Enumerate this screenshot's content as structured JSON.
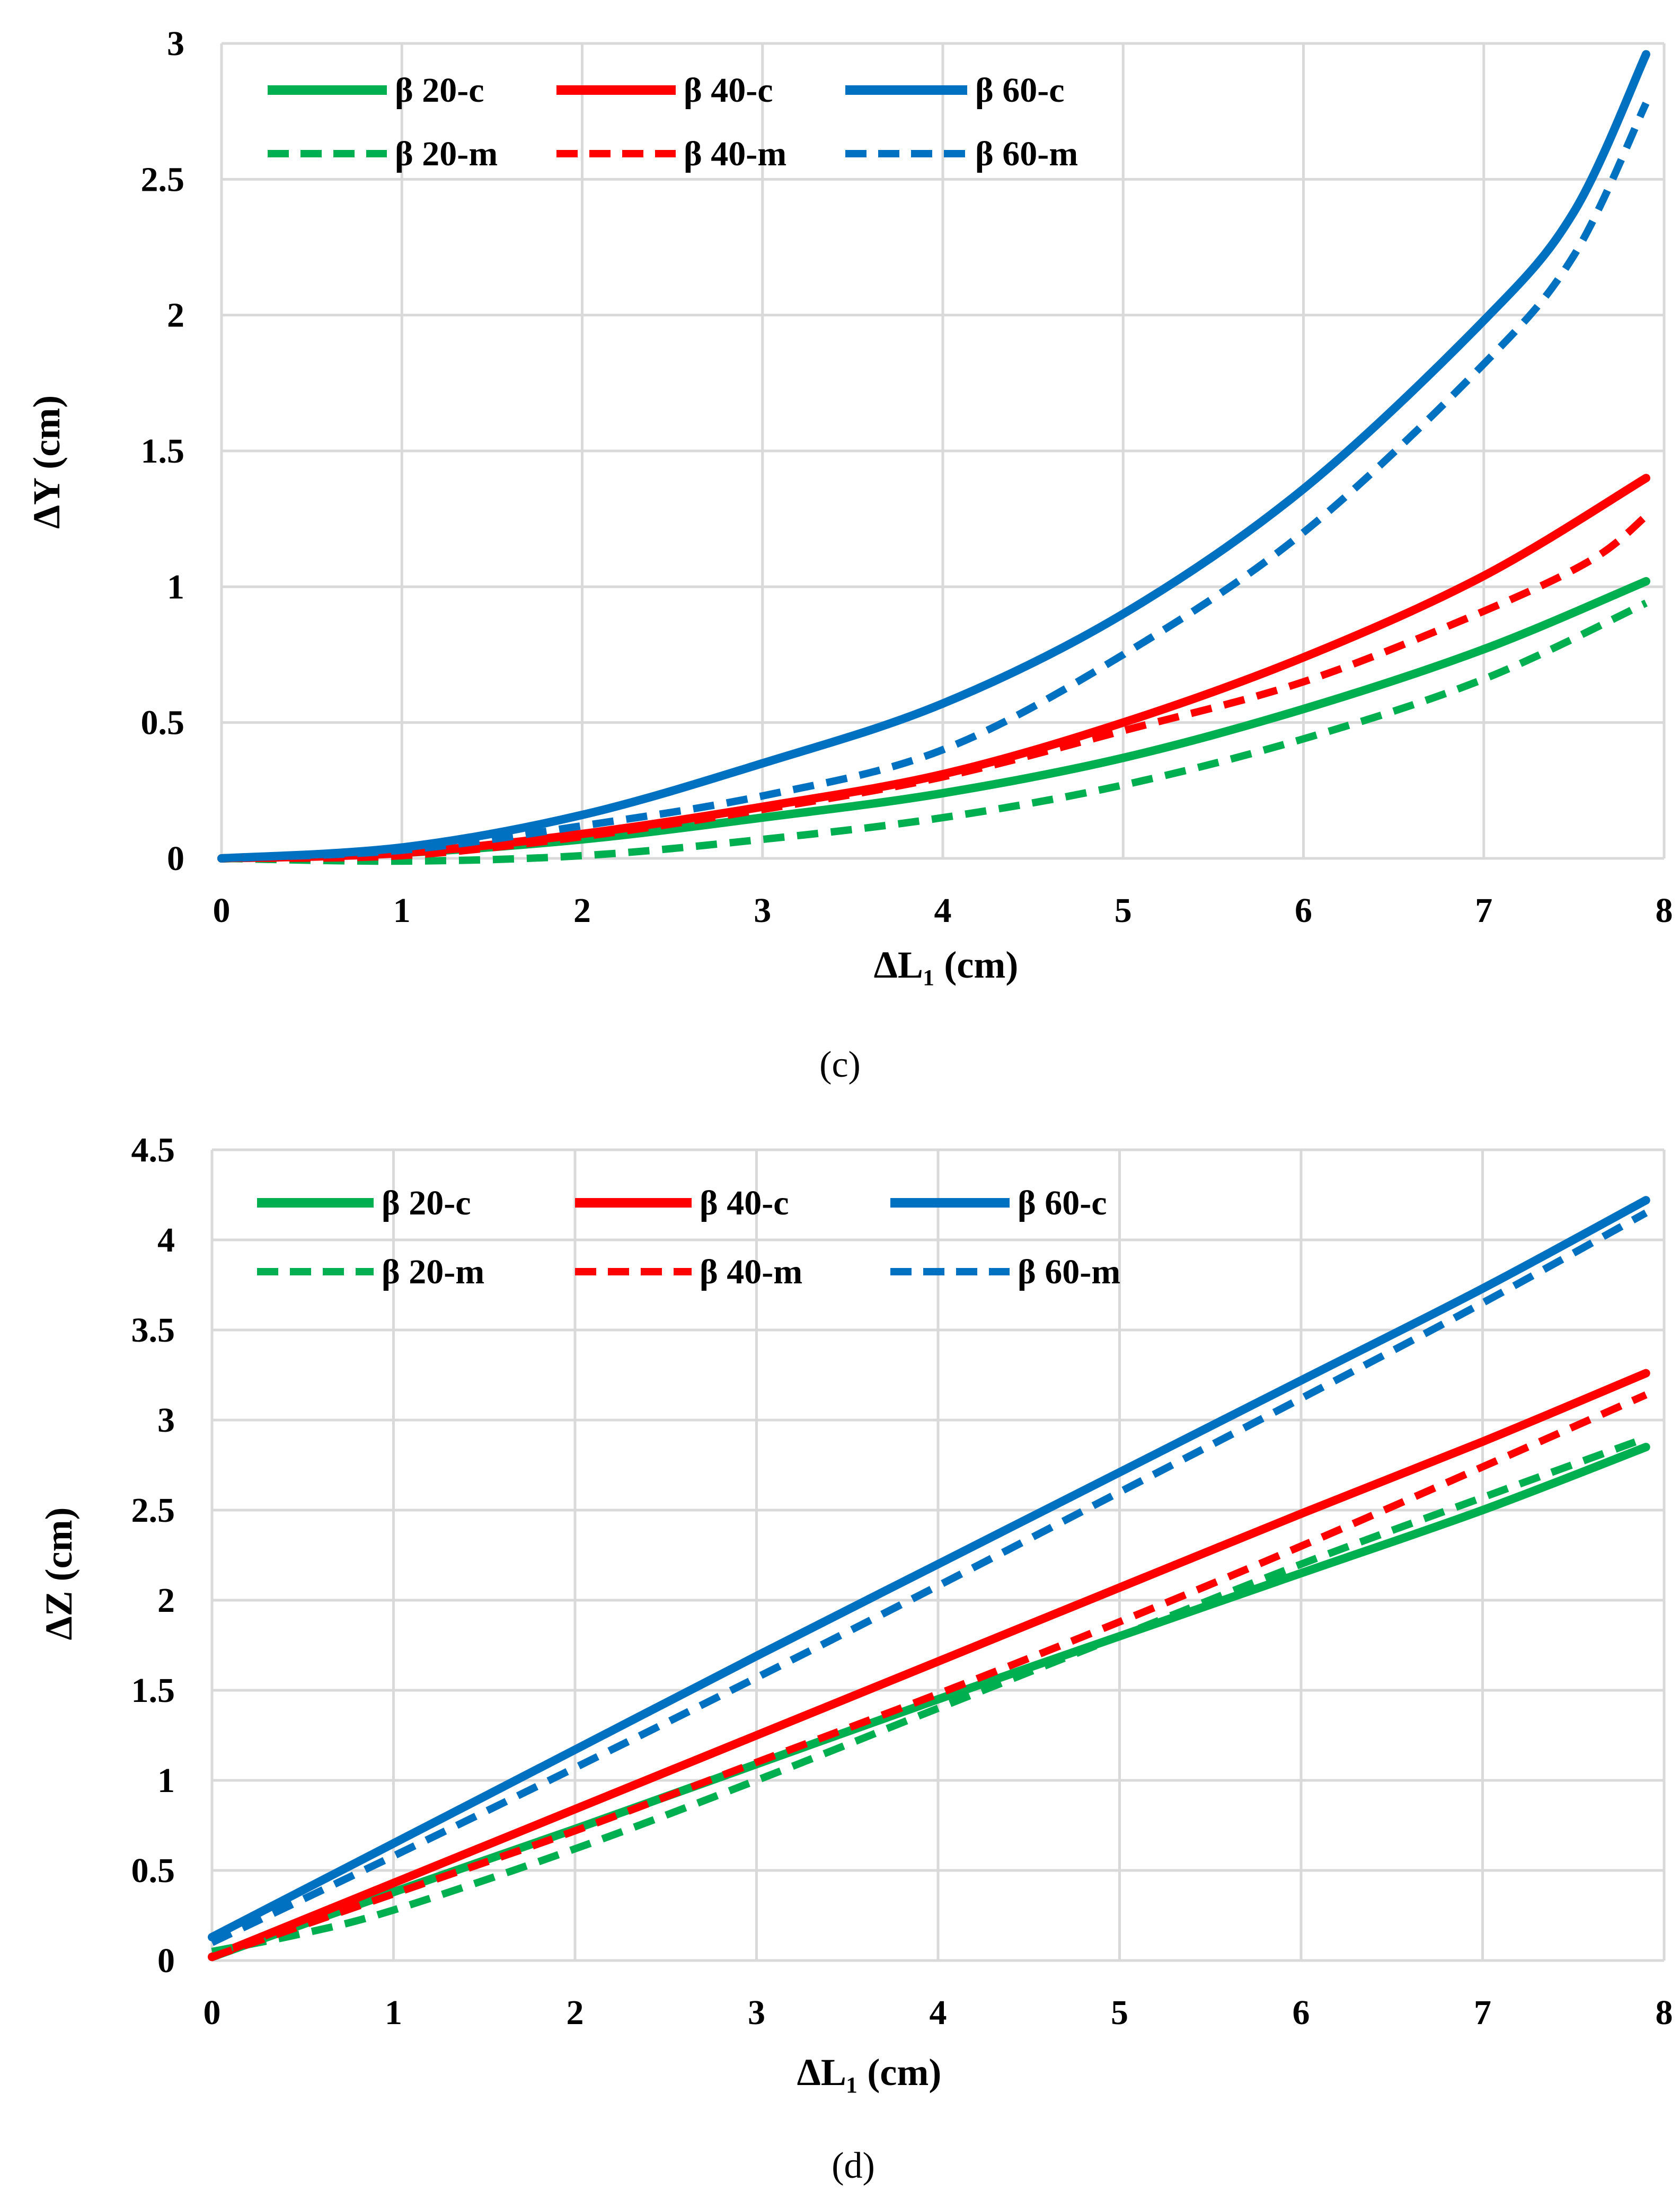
{
  "series_styles": {
    "beta20": "#00B050",
    "beta40": "#FF0000",
    "beta60": "#0070C0"
  },
  "chart_data": [
    {
      "type": "line",
      "panel_label": "(c)",
      "xlabel": "ΔL₁ (cm)",
      "ylabel": "ΔY (cm)",
      "xlim": [
        0,
        8
      ],
      "ylim": [
        0,
        3
      ],
      "xticks": [
        "0",
        "1",
        "2",
        "3",
        "4",
        "5",
        "6",
        "7",
        "8"
      ],
      "yticks": [
        "0",
        "0.5",
        "1",
        "1.5",
        "2",
        "2.5",
        "3"
      ],
      "xtick_values": [
        0,
        1,
        2,
        3,
        4,
        5,
        6,
        7,
        8
      ],
      "ytick_values": [
        0,
        0.5,
        1,
        1.5,
        2,
        2.5,
        3
      ],
      "grid": true,
      "legend_position": "top-left",
      "series": [
        {
          "name": "β 20-c",
          "color": "#00B050",
          "dash": false,
          "x": [
            0,
            1,
            2,
            3,
            4,
            5,
            6,
            7,
            7.9
          ],
          "y": [
            0,
            0.02,
            0.07,
            0.15,
            0.24,
            0.37,
            0.55,
            0.77,
            1.02
          ]
        },
        {
          "name": "β 40-c",
          "color": "#FF0000",
          "dash": false,
          "x": [
            0,
            1,
            2,
            3,
            4,
            5,
            6,
            7,
            7.9
          ],
          "y": [
            0,
            0.02,
            0.09,
            0.19,
            0.31,
            0.5,
            0.74,
            1.04,
            1.4
          ]
        },
        {
          "name": "β 60-c",
          "color": "#0070C0",
          "dash": false,
          "x": [
            0,
            1,
            2,
            3,
            4,
            5,
            6,
            7,
            7.5,
            7.9
          ],
          "y": [
            0,
            0.04,
            0.16,
            0.35,
            0.57,
            0.9,
            1.36,
            1.98,
            2.38,
            2.96
          ]
        },
        {
          "name": "β 20-m",
          "color": "#00B050",
          "dash": true,
          "x": [
            0,
            1,
            2,
            3,
            4,
            5,
            6,
            7,
            7.9
          ],
          "y": [
            0,
            -0.01,
            0.01,
            0.07,
            0.15,
            0.27,
            0.44,
            0.66,
            0.94
          ]
        },
        {
          "name": "β 40-m",
          "color": "#FF0000",
          "dash": true,
          "x": [
            0,
            1,
            2,
            3,
            4,
            5,
            6,
            7,
            7.6,
            7.9
          ],
          "y": [
            0,
            0.01,
            0.08,
            0.18,
            0.3,
            0.47,
            0.65,
            0.91,
            1.1,
            1.26
          ]
        },
        {
          "name": "β 60-m",
          "color": "#0070C0",
          "dash": true,
          "x": [
            0,
            1,
            2,
            3,
            4,
            5,
            6,
            7,
            7.5,
            7.9
          ],
          "y": [
            0,
            0.03,
            0.12,
            0.23,
            0.4,
            0.75,
            1.2,
            1.82,
            2.22,
            2.78
          ]
        }
      ]
    },
    {
      "type": "line",
      "panel_label": "(d)",
      "xlabel": "ΔL₁ (cm)",
      "ylabel": "ΔZ (cm)",
      "xlim": [
        0,
        8
      ],
      "ylim": [
        0,
        4.5
      ],
      "xticks": [
        "0",
        "1",
        "2",
        "3",
        "4",
        "5",
        "6",
        "7",
        "8"
      ],
      "yticks": [
        "0",
        "0.5",
        "1",
        "1.5",
        "2",
        "2.5",
        "3",
        "3.5",
        "4",
        "4.5"
      ],
      "xtick_values": [
        0,
        1,
        2,
        3,
        4,
        5,
        6,
        7,
        8
      ],
      "ytick_values": [
        0,
        0.5,
        1,
        1.5,
        2,
        2.5,
        3,
        3.5,
        4,
        4.5
      ],
      "grid": true,
      "legend_position": "top-left",
      "series": [
        {
          "name": "β 20-c",
          "color": "#00B050",
          "dash": false,
          "x": [
            0,
            1,
            2,
            3,
            4,
            5,
            6,
            7,
            7.9
          ],
          "y": [
            0.02,
            0.38,
            0.73,
            1.09,
            1.45,
            1.8,
            2.15,
            2.5,
            2.85
          ]
        },
        {
          "name": "β 40-c",
          "color": "#FF0000",
          "dash": false,
          "x": [
            0,
            1,
            2,
            3,
            4,
            5,
            6,
            7,
            7.9
          ],
          "y": [
            0.02,
            0.43,
            0.84,
            1.25,
            1.66,
            2.07,
            2.48,
            2.88,
            3.26
          ]
        },
        {
          "name": "β 60-c",
          "color": "#0070C0",
          "dash": false,
          "x": [
            0,
            1,
            2,
            3,
            4,
            5,
            6,
            7,
            7.9
          ],
          "y": [
            0.13,
            0.65,
            1.17,
            1.69,
            2.2,
            2.71,
            3.22,
            3.73,
            4.22
          ]
        },
        {
          "name": "β 20-m",
          "color": "#00B050",
          "dash": true,
          "x": [
            0,
            0.5,
            1,
            2,
            3,
            4,
            5,
            6,
            7,
            7.9
          ],
          "y": [
            0.05,
            0.15,
            0.28,
            0.62,
            1.0,
            1.4,
            1.8,
            2.2,
            2.57,
            2.9
          ]
        },
        {
          "name": "β 40-m",
          "color": "#FF0000",
          "dash": true,
          "x": [
            0,
            1,
            2,
            3,
            4,
            5,
            6,
            7,
            7.9
          ],
          "y": [
            0.02,
            0.37,
            0.72,
            1.1,
            1.48,
            1.88,
            2.3,
            2.74,
            3.14
          ]
        },
        {
          "name": "β 60-m",
          "color": "#0070C0",
          "dash": true,
          "x": [
            0,
            1,
            2,
            3,
            4,
            5,
            6,
            7,
            7.9
          ],
          "y": [
            0.1,
            0.58,
            1.07,
            1.57,
            2.08,
            2.6,
            3.12,
            3.65,
            4.15
          ]
        }
      ]
    }
  ]
}
